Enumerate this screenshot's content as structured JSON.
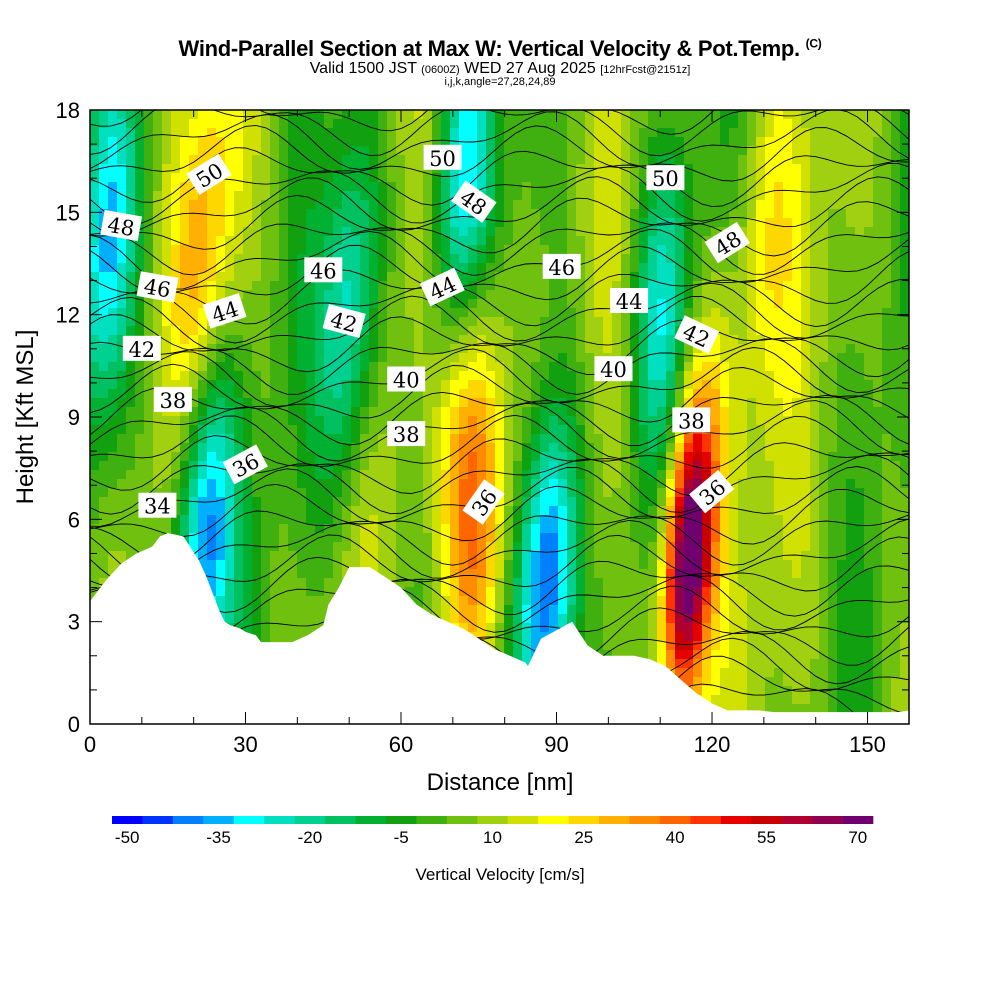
{
  "header": {
    "title": "Wind-Parallel Section at Max W: Vertical Velocity & Pot.Temp.",
    "copyright": "(C)",
    "valid_prefix": "Valid 1500 JST",
    "valid_utc": "(0600Z)",
    "valid_date": "WED 27 Aug 2025",
    "forecast": "[12hrFcst@2151z]",
    "indices": "i,j,k,angle=27,28,24,89"
  },
  "chart_data": {
    "type": "heatmap",
    "title": "Wind-Parallel Section at Max W: Vertical Velocity & Pot.Temp.",
    "xlabel": "Distance [nm]",
    "ylabel": "Height [Kft MSL]",
    "xlim": [
      0,
      158
    ],
    "ylim": [
      0,
      18
    ],
    "x_ticks": [
      0,
      30,
      60,
      90,
      120,
      150
    ],
    "y_ticks": [
      0,
      3,
      6,
      9,
      12,
      15,
      18
    ],
    "colorbar": {
      "title": "Vertical Velocity [cm/s]",
      "min": -50,
      "max": 75,
      "step": 5,
      "tick_values": [
        -50,
        -35,
        -20,
        -5,
        10,
        25,
        40,
        55,
        70
      ],
      "tick_labels": [
        "-50",
        "-35",
        "-20",
        "-5",
        "10",
        "25",
        "40",
        "55",
        "70"
      ],
      "colors": [
        "#0000ff",
        "#0033ff",
        "#0080ff",
        "#00b0ff",
        "#00ffff",
        "#00e0c0",
        "#00d090",
        "#00c060",
        "#00b030",
        "#10a010",
        "#40b010",
        "#70c010",
        "#a0d010",
        "#d0e000",
        "#ffff00",
        "#ffd700",
        "#ffb000",
        "#ff8c00",
        "#ff6600",
        "#ff3300",
        "#e60000",
        "#c80000",
        "#b00030",
        "#900050",
        "#700070"
      ]
    },
    "terrain_profile": {
      "x": [
        0,
        3,
        6,
        9,
        12,
        13.5,
        15,
        18,
        21,
        22.5,
        25,
        26,
        27,
        29,
        30,
        32,
        33,
        36,
        39,
        42,
        45,
        46,
        48,
        50,
        51,
        54,
        57,
        60,
        63,
        66,
        69,
        72,
        75,
        78,
        81,
        84,
        84.5,
        87,
        93,
        96,
        99,
        102,
        105,
        108,
        111,
        114,
        117,
        120,
        123,
        126,
        129,
        132,
        135,
        138,
        141,
        144,
        147,
        150,
        153,
        156,
        158
      ],
      "height": [
        3.6,
        4.2,
        4.7,
        5.0,
        5.2,
        5.5,
        5.6,
        5.5,
        4.8,
        4.3,
        3.3,
        3.0,
        2.9,
        2.8,
        2.7,
        2.6,
        2.4,
        2.4,
        2.4,
        2.6,
        2.9,
        3.5,
        4.0,
        4.6,
        4.6,
        4.6,
        4.3,
        4.0,
        3.5,
        3.2,
        3.0,
        2.8,
        2.5,
        2.2,
        2.0,
        1.8,
        1.7,
        2.5,
        3.0,
        2.3,
        2.0,
        2.0,
        2.0,
        1.9,
        1.7,
        1.3,
        0.9,
        0.6,
        0.4,
        0.4,
        0.4,
        0.35,
        0.35,
        0.35,
        0.35,
        0.35,
        0.35,
        0.35,
        0.35,
        0.35,
        0.4
      ]
    },
    "w_features": [
      {
        "name": "updraft-core",
        "x": 115,
        "height": 4.5,
        "w": 75
      },
      {
        "name": "updraft",
        "x": 75,
        "height": 5.5,
        "w": 40
      },
      {
        "name": "updraft",
        "x": 73,
        "height": 9.5,
        "w": 30
      },
      {
        "name": "updraft",
        "x": 22,
        "height": 14.0,
        "w": 30
      },
      {
        "name": "updraft",
        "x": 118,
        "height": 7.5,
        "w": 30
      },
      {
        "name": "updraft",
        "x": 130,
        "height": 14.0,
        "w": 22
      },
      {
        "name": "downdraft",
        "x": 88,
        "height": 4.0,
        "w": -50
      },
      {
        "name": "downdraft",
        "x": 22,
        "height": 5.5,
        "w": -40
      },
      {
        "name": "downdraft",
        "x": 72,
        "height": 16.0,
        "w": -30
      },
      {
        "name": "downdraft",
        "x": 50,
        "height": 12.0,
        "w": -25
      },
      {
        "name": "downdraft",
        "x": 3,
        "height": 14.0,
        "w": -25
      },
      {
        "name": "downdraft",
        "x": 110,
        "height": 12.0,
        "w": -20
      }
    ],
    "theta_labels": [
      {
        "text": "50",
        "x": 23,
        "height": 16.1,
        "angle": -32
      },
      {
        "text": "50",
        "x": 68,
        "height": 16.6,
        "angle": 0
      },
      {
        "text": "50",
        "x": 111,
        "height": 16.0,
        "angle": 0
      },
      {
        "text": "48",
        "x": 6,
        "height": 14.6,
        "angle": 10
      },
      {
        "text": "48",
        "x": 74,
        "height": 15.3,
        "angle": 35
      },
      {
        "text": "48",
        "x": 123,
        "height": 14.1,
        "angle": -32
      },
      {
        "text": "46",
        "x": 13,
        "height": 12.8,
        "angle": 10
      },
      {
        "text": "46",
        "x": 45,
        "height": 13.3,
        "angle": 0
      },
      {
        "text": "46",
        "x": 91,
        "height": 13.4,
        "angle": 0
      },
      {
        "text": "44",
        "x": 26,
        "height": 12.1,
        "angle": -18
      },
      {
        "text": "44",
        "x": 68,
        "height": 12.8,
        "angle": -25
      },
      {
        "text": "44",
        "x": 104,
        "height": 12.4,
        "angle": 0
      },
      {
        "text": "42",
        "x": 49,
        "height": 11.8,
        "angle": 15
      },
      {
        "text": "42",
        "x": 10,
        "height": 11.0,
        "angle": 0
      },
      {
        "text": "42",
        "x": 117,
        "height": 11.4,
        "angle": 25
      },
      {
        "text": "40",
        "x": 61,
        "height": 10.1,
        "angle": 0
      },
      {
        "text": "40",
        "x": 101,
        "height": 10.4,
        "angle": 0
      },
      {
        "text": "38",
        "x": 16,
        "height": 9.5,
        "angle": 0
      },
      {
        "text": "38",
        "x": 61,
        "height": 8.5,
        "angle": 0
      },
      {
        "text": "38",
        "x": 116,
        "height": 8.9,
        "angle": 0
      },
      {
        "text": "36",
        "x": 30,
        "height": 7.6,
        "angle": -28
      },
      {
        "text": "36",
        "x": 76,
        "height": 6.5,
        "angle": -55
      },
      {
        "text": "36",
        "x": 120,
        "height": 6.8,
        "angle": -40
      },
      {
        "text": "34",
        "x": 13,
        "height": 6.4,
        "angle": 0
      }
    ]
  }
}
